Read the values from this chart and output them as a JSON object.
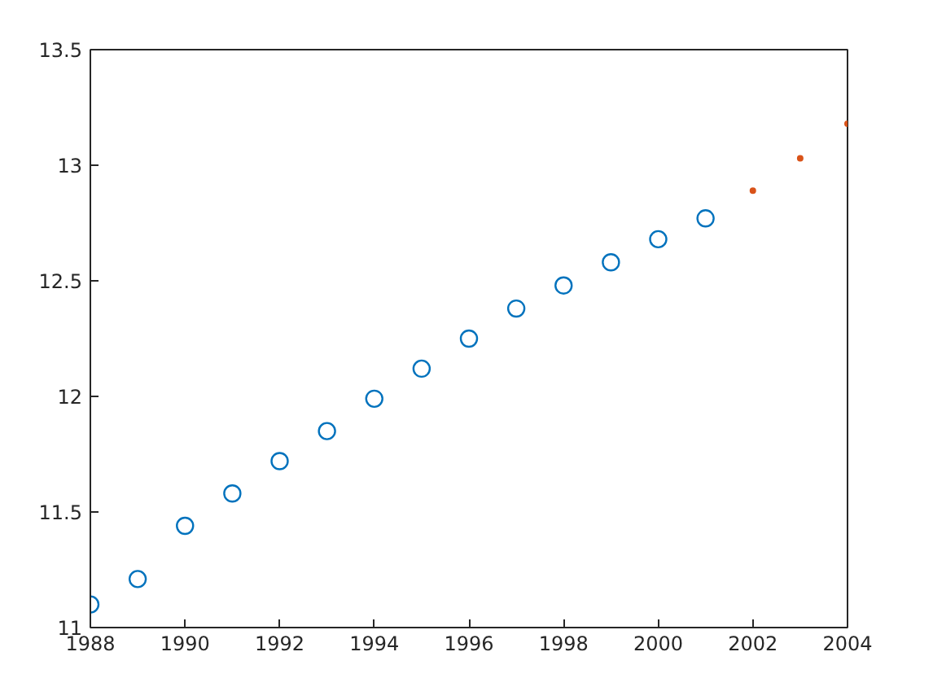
{
  "chart_data": {
    "type": "scatter",
    "x": [
      1988,
      1989,
      1990,
      1991,
      1992,
      1993,
      1994,
      1995,
      1996,
      1997,
      1998,
      1999,
      2000,
      2001
    ],
    "series": [
      {
        "color": "#0072bd",
        "marker": "circle",
        "values": [
          11.1,
          11.21,
          11.44,
          11.58,
          11.72,
          11.85,
          11.99,
          12.12,
          12.25,
          12.38,
          12.48,
          12.58,
          12.68,
          12.77
        ]
      },
      {
        "color": "#d95319",
        "marker": "circle",
        "x": [
          2002,
          2003,
          2004
        ],
        "values": [
          12.89,
          13.03,
          13.18
        ]
      }
    ],
    "xlim": [
      1988,
      2004
    ],
    "ylim": [
      11,
      13.5
    ],
    "xticks": [
      1988,
      1990,
      1992,
      1994,
      1996,
      1998,
      2000,
      2002,
      2004
    ],
    "yticks": [
      11,
      11.5,
      12,
      12.5,
      13,
      13.5
    ],
    "grid": false
  }
}
